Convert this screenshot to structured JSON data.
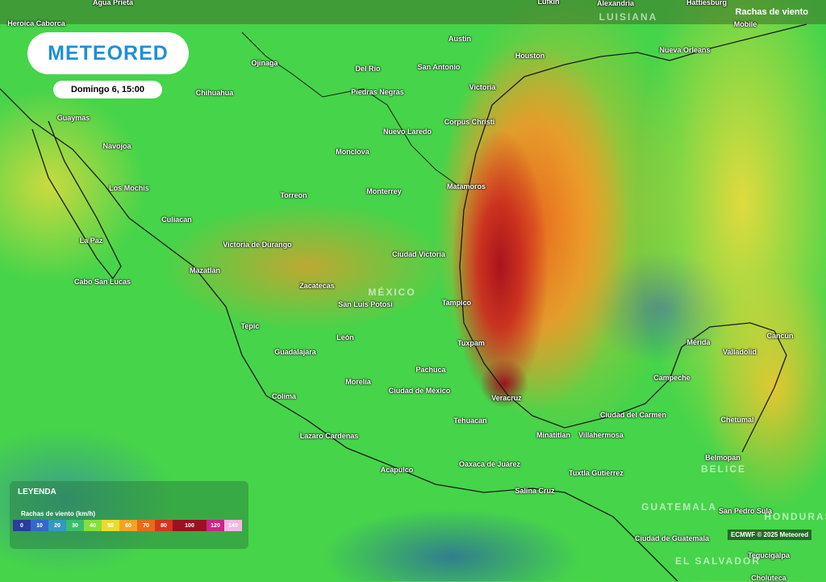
{
  "header": {
    "logo": "METEORED",
    "datetime": "Domingo 6, 15:00",
    "layer": "Rachas de viento"
  },
  "legend": {
    "title": "LEYENDA",
    "subtitle": "Rachas de viento (km/h)",
    "items": [
      {
        "value": 0,
        "color": "#2a3c9c"
      },
      {
        "value": 10,
        "color": "#3468c8"
      },
      {
        "value": 20,
        "color": "#3499c0"
      },
      {
        "value": 30,
        "color": "#38bf6c"
      },
      {
        "value": 40,
        "color": "#86e03c"
      },
      {
        "value": 50,
        "color": "#e8dc2c"
      },
      {
        "value": 60,
        "color": "#f2a424"
      },
      {
        "value": 70,
        "color": "#e86a1a"
      },
      {
        "value": 80,
        "color": "#d6341e"
      },
      {
        "value": 100,
        "color": "#9c1022"
      },
      {
        "value": 120,
        "color": "#cc2488"
      },
      {
        "value": 140,
        "color": "#f6b8e2"
      }
    ]
  },
  "credit": "ECMWF © 2025 Meteored",
  "places": [
    "Lufkin",
    "Alexandria",
    "Hattiesburg",
    "LUISIANA",
    "Mobile",
    "Agua Prieta",
    "Heroica Caborca",
    "Austin",
    "Ojinaga",
    "Del Rio",
    "San Antonio",
    "Houston",
    "Nueva Orleans",
    "Victoria",
    "Piedras Negras",
    "Chihuahua",
    "Guaymas",
    "Corpus Christi",
    "Nuevo Laredo",
    "Navojoa",
    "Monclova",
    "Los Mochis",
    "Monterrey",
    "Matamoros",
    "Torreon",
    "Culiacan",
    "La Paz",
    "Victoria de Durango",
    "Ciudad Victoria",
    "Mazatlan",
    "Cabo San Lucas",
    "Zacatecas",
    "MÉXICO",
    "San Luis Potosi",
    "Tampico",
    "Tepic",
    "León",
    "Tuxpam",
    "Guadalajara",
    "Pachuca",
    "Morelia",
    "Ciudad de México",
    "Colima",
    "Veracruz",
    "Tehuacan",
    "Lazaro Cardenas",
    "Minatitlan",
    "Villahermosa",
    "Ciudad del Carmen",
    "Acapulco",
    "Oaxaca de Juárez",
    "Tuxtla Gutierrez",
    "Salina Cruz",
    "Mérida",
    "Valladolid",
    "Cancún",
    "Campeche",
    "Chetumal",
    "Belmopan",
    "BELICE",
    "GUATEMALA",
    "San Pedro Sula",
    "HONDURAS",
    "Ciudad de Guatemala",
    "Tegucigalpa",
    "EL SALVADOR",
    "Choluteca"
  ]
}
